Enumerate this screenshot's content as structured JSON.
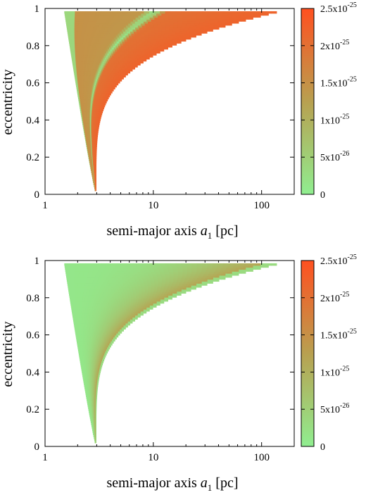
{
  "chart_data": [
    {
      "type": "heatmap",
      "title": "",
      "xlabel": "semi-major axis",
      "xlabel_symbol": "a",
      "xlabel_subscript": "1",
      "xlabel_unit": "[pc]",
      "ylabel": "eccentricity",
      "x_scale": "log",
      "xlim": [
        1,
        200
      ],
      "ylim": [
        0,
        1
      ],
      "x_ticks": [
        {
          "v": 1,
          "label": "1"
        },
        {
          "v": 10,
          "label": "10"
        },
        {
          "v": 100,
          "label": "100"
        }
      ],
      "y_ticks": [
        {
          "v": 0,
          "label": "0"
        },
        {
          "v": 0.2,
          "label": "0.2"
        },
        {
          "v": 0.4,
          "label": "0.4"
        },
        {
          "v": 0.6,
          "label": "0.6"
        },
        {
          "v": 0.8,
          "label": "0.8"
        },
        {
          "v": 1,
          "label": "1"
        }
      ],
      "colorbar": {
        "range": [
          0,
          2.5e-25
        ],
        "colors": [
          "#90ee90",
          "#b8a050",
          "#ff5020"
        ],
        "ticks": [
          {
            "v": 0,
            "mant": "0",
            "exp": ""
          },
          {
            "v": 5e-26,
            "mant": "5x10",
            "exp": "-26"
          },
          {
            "v": 1e-25,
            "mant": "1x10",
            "exp": "-25"
          },
          {
            "v": 1.5e-25,
            "mant": "1.5x10",
            "exp": "-25"
          },
          {
            "v": 2e-25,
            "mant": "2x10",
            "exp": "-25"
          },
          {
            "v": 2.5e-25,
            "mant": "2.5x10",
            "exp": "-25"
          }
        ]
      },
      "region": {
        "e_max": 0.985,
        "x_left_top": 1.5,
        "x_tip": 2.95,
        "x_right_top": 150
      },
      "ridge": {
        "present": true,
        "x_top": 10,
        "color_frac_inner": 0.55,
        "color_frac_outer": 0.88
      }
    },
    {
      "type": "heatmap",
      "title": "",
      "xlabel": "semi-major axis",
      "xlabel_symbol": "a",
      "xlabel_subscript": "1",
      "xlabel_unit": "[pc]",
      "ylabel": "eccentricity",
      "x_scale": "log",
      "xlim": [
        1,
        200
      ],
      "ylim": [
        0,
        1
      ],
      "x_ticks": [
        {
          "v": 1,
          "label": "1"
        },
        {
          "v": 10,
          "label": "10"
        },
        {
          "v": 100,
          "label": "100"
        }
      ],
      "y_ticks": [
        {
          "v": 0,
          "label": "0"
        },
        {
          "v": 0.2,
          "label": "0.2"
        },
        {
          "v": 0.4,
          "label": "0.4"
        },
        {
          "v": 0.6,
          "label": "0.6"
        },
        {
          "v": 0.8,
          "label": "0.8"
        },
        {
          "v": 1,
          "label": "1"
        }
      ],
      "colorbar": {
        "range": [
          0,
          2.5e-25
        ],
        "colors": [
          "#90ee90",
          "#b8a050",
          "#ff5020"
        ],
        "ticks": [
          {
            "v": 0,
            "mant": "0",
            "exp": ""
          },
          {
            "v": 5e-26,
            "mant": "5x10",
            "exp": "-26"
          },
          {
            "v": 1e-25,
            "mant": "1x10",
            "exp": "-25"
          },
          {
            "v": 1.5e-25,
            "mant": "1.5x10",
            "exp": "-25"
          },
          {
            "v": 2e-25,
            "mant": "2x10",
            "exp": "-25"
          },
          {
            "v": 2.5e-25,
            "mant": "2.5x10",
            "exp": "-25"
          }
        ]
      },
      "region": {
        "e_max": 0.985,
        "x_left_top": 1.5,
        "x_tip": 2.95,
        "x_right_top": 150
      },
      "ridge": {
        "present": false,
        "x_top": 10,
        "color_frac_inner": 0.1,
        "color_frac_outer": 0.5
      }
    }
  ]
}
